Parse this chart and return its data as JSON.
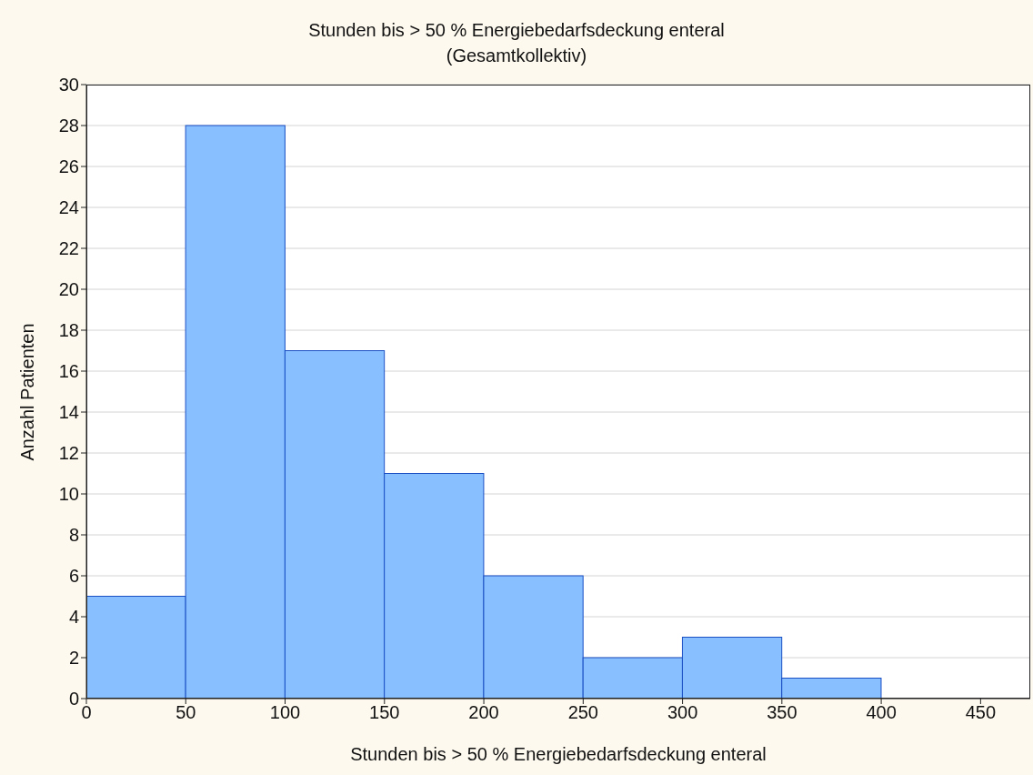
{
  "chart_data": {
    "type": "histogram",
    "title": "Stunden bis > 50 % Energiebedarfsdeckung enteral",
    "subtitle": "(Gesamtkollektiv)",
    "xlabel": "Stunden bis > 50 % Energiebedarfsdeckung enteral",
    "ylabel": "Anzahl Patienten",
    "bins": [
      0,
      50,
      100,
      150,
      200,
      250,
      300,
      350,
      400
    ],
    "values": [
      5,
      28,
      17,
      11,
      6,
      2,
      3,
      1
    ],
    "color": "#87bfff",
    "xlim": [
      0,
      475
    ],
    "xticks": [
      0,
      50,
      100,
      150,
      200,
      250,
      300,
      350,
      400,
      450
    ],
    "ylim": [
      0,
      30
    ],
    "yticks": [
      0,
      2,
      4,
      6,
      8,
      10,
      12,
      14,
      16,
      18,
      20,
      22,
      24,
      26,
      28,
      30
    ],
    "grid": "y"
  }
}
